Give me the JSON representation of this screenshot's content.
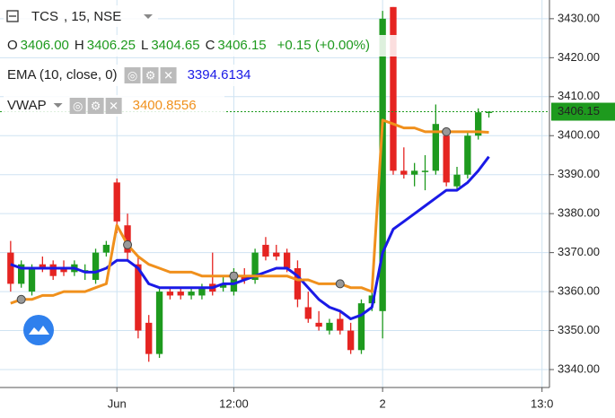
{
  "chart_data": {
    "type": "candlestick",
    "header": {
      "symbol": "TCS",
      "details": ", 15, NSE",
      "ohlc": [
        {
          "label": "O",
          "value": "3406.00"
        },
        {
          "label": "H",
          "value": "3406.25"
        },
        {
          "label": "L",
          "value": "3404.65"
        },
        {
          "label": "C",
          "value": "3406.15"
        }
      ],
      "change": "+0.15 (+0.00%)"
    },
    "candles": {
      "name": "TCS",
      "up_color": "#1e9a1e",
      "down_color": "#e52421",
      "open": [
        3370,
        3362,
        3360,
        3367,
        3367,
        3366,
        3365,
        3365,
        3363,
        3370,
        3388,
        3377,
        3367,
        3352,
        3344,
        3360,
        3360,
        3359,
        3359,
        3362,
        3361,
        3360,
        3364,
        3363,
        3372,
        3370,
        3370,
        3366,
        3356,
        3352,
        3350,
        3353,
        3350,
        3345,
        3357,
        3355,
        3433,
        3391,
        3390,
        3391,
        3391,
        3400,
        3387,
        3390,
        3400,
        3406
      ],
      "high": [
        3373,
        3368,
        3367,
        3369,
        3368,
        3368,
        3368,
        3367,
        3371,
        3373,
        3389,
        3380,
        3369,
        3354,
        3361,
        3361,
        3361,
        3361,
        3362,
        3370,
        3364,
        3366,
        3366,
        3371,
        3374,
        3372,
        3371,
        3368,
        3360,
        3355,
        3353,
        3355,
        3352,
        3358,
        3360,
        3432,
        3433,
        3397,
        3393,
        3395,
        3408,
        3402,
        3392,
        3401,
        3407,
        3406.25
      ],
      "low": [
        3360,
        3361,
        3359,
        3365,
        3363,
        3364,
        3364,
        3363,
        3362,
        3369,
        3375,
        3368,
        3348,
        3342,
        3343,
        3358,
        3358,
        3358,
        3358,
        3359,
        3360,
        3359,
        3362,
        3362,
        3368,
        3368,
        3365,
        3356,
        3352,
        3350,
        3349,
        3349,
        3344,
        3344,
        3355,
        3348,
        3390,
        3389,
        3387,
        3386,
        3390,
        3387,
        3386,
        3389,
        3399,
        3404.65
      ],
      "close": [
        3362,
        3367,
        3366,
        3366,
        3364,
        3365,
        3367,
        3365.5,
        3370,
        3372,
        3378,
        3370,
        3350,
        3344,
        3360,
        3359,
        3359,
        3360,
        3361,
        3360,
        3362,
        3365,
        3363,
        3370,
        3369,
        3369,
        3366,
        3358,
        3353,
        3351,
        3352,
        3350,
        3345,
        3357,
        3359,
        3430,
        3391,
        3390,
        3391,
        3391,
        3403,
        3388,
        3390,
        3400,
        3406,
        3406.15
      ]
    },
    "series": [
      {
        "name": "EMA (10, close, 0)",
        "color": "#1a1ae6",
        "values": [
          3367,
          3366,
          3366,
          3366,
          3366,
          3366,
          3366,
          3365,
          3365,
          3366,
          3368,
          3368,
          3366,
          3362,
          3361,
          3361,
          3361,
          3361,
          3361,
          3361,
          3362,
          3362,
          3363,
          3364,
          3365,
          3366,
          3366,
          3364,
          3361,
          3358,
          3356,
          3355,
          3353,
          3354,
          3356,
          3370,
          3376,
          3378,
          3380,
          3382,
          3384,
          3386,
          3386,
          3388,
          3391,
          3394.6134
        ]
      },
      {
        "name": "VWAP",
        "color": "#f0901c",
        "values": [
          3357,
          3358,
          3358,
          3359,
          3359,
          3360,
          3360,
          3360,
          3361,
          3362,
          3377,
          3372,
          3369,
          3367,
          3366,
          3365,
          3365,
          3365,
          3364,
          3364,
          3364,
          3364,
          3364,
          3364,
          3364,
          3364,
          3364,
          3363,
          3363,
          3362,
          3362,
          3362,
          3361,
          3361,
          3360,
          3404,
          3403,
          3402,
          3402,
          3401,
          3401,
          3401,
          3401,
          3401,
          3401,
          3400.8556
        ]
      }
    ],
    "xlim": [
      -1,
      50.7
    ],
    "xticks": [
      {
        "value": 10,
        "label": "Jun"
      },
      {
        "value": 21,
        "label": "12:00"
      },
      {
        "value": 35,
        "label": "2"
      },
      {
        "value": 50,
        "label": "13:0"
      }
    ],
    "ylim": [
      3335.4,
      3434.8
    ],
    "yticks": [
      {
        "value": 3340,
        "label": "3340.00"
      },
      {
        "value": 3350,
        "label": "3350.00"
      },
      {
        "value": 3360,
        "label": "3360.00"
      },
      {
        "value": 3370,
        "label": "3370.00"
      },
      {
        "value": 3380,
        "label": "3380.00"
      },
      {
        "value": 3390,
        "label": "3390.00"
      },
      {
        "value": 3400,
        "label": "3400.00"
      },
      {
        "value": 3410,
        "label": "3410.00"
      },
      {
        "value": 3420,
        "label": "3420.00"
      },
      {
        "value": 3430,
        "label": "3430.00"
      }
    ],
    "grid": true
  }
}
